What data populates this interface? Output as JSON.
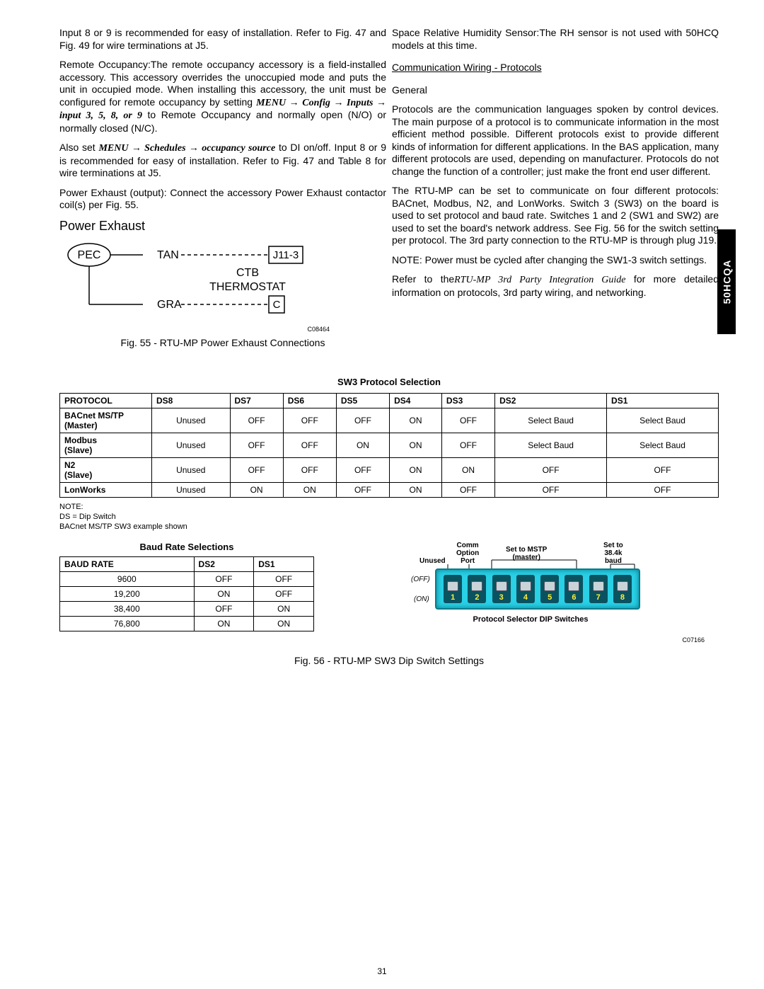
{
  "sidebar_label": "50HCQA",
  "left": {
    "p1": "Input 8 or 9 is recommended for easy of installation. Refer to Fig. 47 and Fig. 49 for wire terminations at J5.",
    "p2": "Remote Occupancy:The remote occupancy accessory is a field-installed accessory. This accessory overrides the unoccupied mode and puts the unit in occupied mode. When installing this accessory, the unit must be configured for remote occupancy by setting",
    "menu1": "MENU → Config → Inputs → input 3, 5, 8, or 9",
    "p2b": " to Remote Occupancy and normally open (N/O) or normally closed (N/C).",
    "p3a": "Also set ",
    "menu2": "MENU → Schedules → occupancy source",
    "p3b": " to DI on/off. Input 8 or 9 is recommended for easy of installation. Refer to Fig. 47 and Table 8 for wire terminations at J5.",
    "p4": "Power Exhaust (output): Connect the accessory Power Exhaust contactor coil(s) per Fig. 55.",
    "section": "Power Exhaust",
    "diag": {
      "pec": "PEC",
      "tan": "TAN",
      "j11": "J11-3",
      "ctb": "CTB",
      "therm": "THERMOSTAT",
      "gra": "GRA",
      "c": "C"
    },
    "fig_code": "C08464",
    "fig_caption": "Fig. 55 - RTU-MP Power Exhaust Connections"
  },
  "right": {
    "p1": "Space Relative Humidity Sensor:The RH sensor is not used with 50HCQ models at this time.",
    "heading": "Communication Wiring - Protocols",
    "sub": "General",
    "p2": "Protocols are the communication languages spoken by control devices. The main purpose of a protocol is to communicate information in the most efficient method possible. Different protocols exist to provide different kinds of information for different applications. In the BAS application, many different protocols are used, depending on manufacturer. Protocols do not change the function of a controller; just make the front end user different.",
    "p3": "The RTU-MP can be set to communicate on four different protocols: BACnet, Modbus, N2, and LonWorks. Switch 3 (SW3) on the board is used to set protocol and baud rate. Switches 1 and 2 (SW1 and SW2) are used to set the board's network address. See Fig. 56 for the switch setting per protocol. The 3rd party connection to the RTU-MP is through plug J19.",
    "p4": "NOTE: Power must be cycled after changing the SW1-3 switch settings.",
    "p5a": "Refer to the",
    "p5i": "RTU-MP 3rd Party Integration Guide",
    "p5b": " for more detailed information on protocols, 3rd party wiring, and networking."
  },
  "sw3_title": "SW3 Protocol Selection",
  "sw3_headers": [
    "PROTOCOL",
    "DS8",
    "DS7",
    "DS6",
    "DS5",
    "DS4",
    "DS3",
    "DS2",
    "DS1"
  ],
  "sw3_rows": [
    {
      "name": "BACnet MS/TP",
      "sub": "(Master)",
      "c": [
        "Unused",
        "OFF",
        "OFF",
        "OFF",
        "ON",
        "OFF",
        "Select Baud",
        "Select Baud"
      ]
    },
    {
      "name": "Modbus",
      "sub": "(Slave)",
      "c": [
        "Unused",
        "OFF",
        "OFF",
        "ON",
        "ON",
        "OFF",
        "Select Baud",
        "Select Baud"
      ]
    },
    {
      "name": "N2",
      "sub": "(Slave)",
      "c": [
        "Unused",
        "OFF",
        "OFF",
        "OFF",
        "ON",
        "ON",
        "OFF",
        "OFF"
      ]
    },
    {
      "name": "LonWorks",
      "sub": "",
      "c": [
        "Unused",
        "ON",
        "ON",
        "OFF",
        "ON",
        "OFF",
        "OFF",
        "OFF"
      ]
    }
  ],
  "note": {
    "l1": "NOTE:",
    "l2": "DS = Dip Switch",
    "l3": "BACnet MS/TP SW3 example shown"
  },
  "baud_title": "Baud Rate Selections",
  "baud_headers": [
    "BAUD RATE",
    "DS2",
    "DS1"
  ],
  "baud_rows": [
    {
      "r": "9600",
      "a": "OFF",
      "b": "OFF"
    },
    {
      "r": "19,200",
      "a": "ON",
      "b": "OFF"
    },
    {
      "r": "38,400",
      "a": "OFF",
      "b": "ON"
    },
    {
      "r": "76,800",
      "a": "ON",
      "b": "ON"
    }
  ],
  "dip": {
    "top_labels": {
      "unused": "Unused",
      "comm": "Comm\nOption\nPort",
      "mstp": "Set to MSTP\n(master)",
      "baud": "Set to\n38.4k\nbaud"
    },
    "off": "(OFF)",
    "on": "(ON)",
    "caption": "Protocol Selector DIP Switches",
    "numbers": [
      "8",
      "7",
      "6",
      "5",
      "4",
      "3",
      "2",
      "1"
    ],
    "code": "C07166"
  },
  "fig56": "Fig. 56 - RTU-MP SW3 Dip Switch Settings",
  "page_num": "31"
}
